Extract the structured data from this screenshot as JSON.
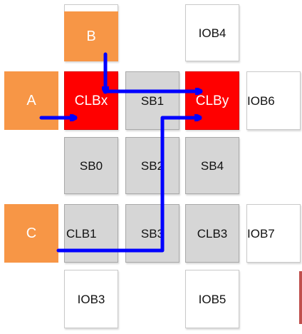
{
  "diagram": {
    "colors": {
      "io_block": "#ffffff",
      "switch_block": "#d6d6d6",
      "clb_highlight": "#ff0000",
      "input_block": "#f79646",
      "route": "#0000ff",
      "accent_line": "#c0504d"
    },
    "labels": {
      "B": "B",
      "IOB4": "IOB4",
      "A": "A",
      "CLBx": "CLBx",
      "SB1": "SB1",
      "CLBy": "CLBy",
      "IOB6": "IOB6",
      "SB0": "SB0",
      "SB2": "SB2",
      "SB4": "SB4",
      "C": "C",
      "CLB1": "CLB1",
      "SB3": "SB3",
      "CLB3": "CLB3",
      "IOB7": "IOB7",
      "IOB3": "IOB3",
      "IOB5": "IOB5"
    }
  }
}
